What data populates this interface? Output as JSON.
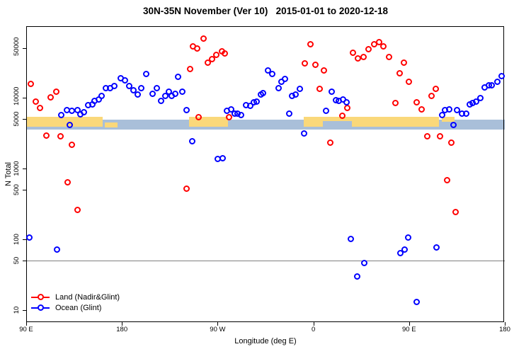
{
  "title": "30N-35N November (Ver 10)   2015-01-01 to 2020-12-18",
  "axes": {
    "x": {
      "label": "Longitude (deg E)",
      "range_deg": [
        90,
        540
      ],
      "ticks": [
        {
          "deg": 90,
          "label": "90 E"
        },
        {
          "deg": 180,
          "label": "180"
        },
        {
          "deg": 270,
          "label": "90 W"
        },
        {
          "deg": 360,
          "label": "0"
        },
        {
          "deg": 450,
          "label": "90 E"
        },
        {
          "deg": 540,
          "label": "180"
        }
      ]
    },
    "y": {
      "label": "N Total",
      "scale": "log",
      "ticks": [
        {
          "value": 50000,
          "label": "50000"
        },
        {
          "value": 10000,
          "label": "10000"
        },
        {
          "value": 5000,
          "label": "5000"
        },
        {
          "value": 1000,
          "label": "1000"
        },
        {
          "value": 500,
          "label": "500"
        },
        {
          "value": 100,
          "label": "100"
        },
        {
          "value": 50,
          "label": "50"
        },
        {
          "value": 10,
          "label": "10"
        }
      ]
    }
  },
  "reference_line": {
    "value": 50,
    "color": "#7f7f7f"
  },
  "map_band": {
    "center_value": 5000,
    "ocean_range_deg": [
      90,
      540
    ],
    "land_segments_deg": [
      [
        90,
        162
      ],
      [
        243,
        280
      ],
      [
        351,
        478
      ]
    ],
    "island_patches_deg": [
      [
        164,
        176
      ],
      [
        481,
        493
      ]
    ],
    "sea_notches_deg": [
      [
        369,
        396
      ]
    ],
    "land_color": "#FAD87A",
    "ocean_color": "#A9BFD9"
  },
  "legend": {
    "items": [
      {
        "label": "Land (Nadir&Glint)",
        "color": "#FF0000"
      },
      {
        "label": "Ocean (Glint)",
        "color": "#0000FF"
      }
    ]
  },
  "chart_data": {
    "type": "scatter",
    "title": "30N-35N November (Ver 10)   2015-01-01 to 2020-12-18",
    "xlabel": "Longitude (deg E)",
    "ylabel": "N Total",
    "x_range": [
      90,
      540
    ],
    "y_scale": "log",
    "y_tick_values": [
      10,
      50,
      100,
      500,
      1000,
      5000,
      10000,
      50000
    ],
    "grid": "single line at y=50",
    "legend_position": "bottom-left inside plot",
    "series": [
      {
        "name": "Land (Nadir&Glint)",
        "color": "#FF0000",
        "marker": "open-circle",
        "points": [
          [
            94,
            15800
          ],
          [
            99,
            8900
          ],
          [
            103,
            7100
          ],
          [
            109,
            2900
          ],
          [
            113,
            10200
          ],
          [
            118,
            12300
          ],
          [
            122,
            2850
          ],
          [
            129,
            640
          ],
          [
            133,
            2140
          ],
          [
            138,
            260
          ],
          [
            241,
            513
          ],
          [
            244,
            25700
          ],
          [
            247,
            52500
          ],
          [
            251,
            50100
          ],
          [
            252,
            5250
          ],
          [
            257,
            68000
          ],
          [
            261,
            31600
          ],
          [
            265,
            34700
          ],
          [
            269,
            40700
          ],
          [
            274,
            44700
          ],
          [
            277,
            41700
          ],
          [
            281,
            5250
          ],
          [
            352,
            30200
          ],
          [
            357,
            57500
          ],
          [
            362,
            29500
          ],
          [
            366,
            13200
          ],
          [
            370,
            24500
          ],
          [
            376,
            2300
          ],
          [
            387,
            5600
          ],
          [
            392,
            7080
          ],
          [
            397,
            43000
          ],
          [
            402,
            35500
          ],
          [
            407,
            38000
          ],
          [
            412,
            47900
          ],
          [
            417,
            57500
          ],
          [
            422,
            60300
          ],
          [
            426,
            53700
          ],
          [
            431,
            38000
          ],
          [
            437,
            8500
          ],
          [
            441,
            21900
          ],
          [
            445,
            31600
          ],
          [
            450,
            16600
          ],
          [
            457,
            8700
          ],
          [
            462,
            6900
          ],
          [
            467,
            2880
          ],
          [
            471,
            10700
          ],
          [
            475,
            13200
          ],
          [
            479,
            2880
          ],
          [
            486,
            680
          ],
          [
            490,
            2300
          ],
          [
            494,
            245
          ]
        ]
      },
      {
        "name": "Ocean (Glint)",
        "color": "#0000FF",
        "marker": "open-circle",
        "points": [
          [
            93,
            107
          ],
          [
            119,
            71
          ],
          [
            123,
            5750
          ],
          [
            128,
            6760
          ],
          [
            131,
            4100
          ],
          [
            133,
            6600
          ],
          [
            138,
            6760
          ],
          [
            141,
            5800
          ],
          [
            144,
            6200
          ],
          [
            148,
            7800
          ],
          [
            152,
            8100
          ],
          [
            154,
            9100
          ],
          [
            158,
            9500
          ],
          [
            161,
            10700
          ],
          [
            165,
            13500
          ],
          [
            169,
            13800
          ],
          [
            173,
            14500
          ],
          [
            179,
            19000
          ],
          [
            183,
            17400
          ],
          [
            187,
            14500
          ],
          [
            191,
            12600
          ],
          [
            195,
            11200
          ],
          [
            198,
            13500
          ],
          [
            203,
            21500
          ],
          [
            209,
            11400
          ],
          [
            213,
            13800
          ],
          [
            217,
            9100
          ],
          [
            221,
            10700
          ],
          [
            224,
            12300
          ],
          [
            227,
            10700
          ],
          [
            230,
            11400
          ],
          [
            233,
            19500
          ],
          [
            237,
            12300
          ],
          [
            241,
            6760
          ],
          [
            246,
            2450
          ],
          [
            270,
            1350
          ],
          [
            275,
            1400
          ],
          [
            279,
            6600
          ],
          [
            283,
            6900
          ],
          [
            286,
            6000
          ],
          [
            289,
            5900
          ],
          [
            292,
            5750
          ],
          [
            297,
            7900
          ],
          [
            301,
            7600
          ],
          [
            304,
            8700
          ],
          [
            307,
            8900
          ],
          [
            311,
            11200
          ],
          [
            313,
            11700
          ],
          [
            317,
            24500
          ],
          [
            321,
            21400
          ],
          [
            327,
            13800
          ],
          [
            330,
            16600
          ],
          [
            333,
            18200
          ],
          [
            337,
            6000
          ],
          [
            340,
            10700
          ],
          [
            343,
            11000
          ],
          [
            347,
            13200
          ],
          [
            351,
            3150
          ],
          [
            372,
            6600
          ],
          [
            377,
            12300
          ],
          [
            381,
            9300
          ],
          [
            384,
            9100
          ],
          [
            388,
            9500
          ],
          [
            391,
            8700
          ],
          [
            395,
            102
          ],
          [
            401,
            30
          ],
          [
            408,
            46
          ],
          [
            442,
            64
          ],
          [
            446,
            71
          ],
          [
            449,
            107
          ],
          [
            457,
            13
          ],
          [
            476,
            76
          ],
          [
            481,
            5750
          ],
          [
            484,
            6750
          ],
          [
            488,
            6900
          ],
          [
            492,
            4150
          ],
          [
            495,
            6750
          ],
          [
            500,
            6000
          ],
          [
            504,
            5900
          ],
          [
            507,
            8100
          ],
          [
            510,
            8500
          ],
          [
            513,
            8900
          ],
          [
            517,
            9800
          ],
          [
            521,
            14100
          ],
          [
            525,
            14800
          ],
          [
            528,
            14800
          ],
          [
            533,
            16600
          ],
          [
            537,
            20000
          ]
        ]
      }
    ]
  }
}
